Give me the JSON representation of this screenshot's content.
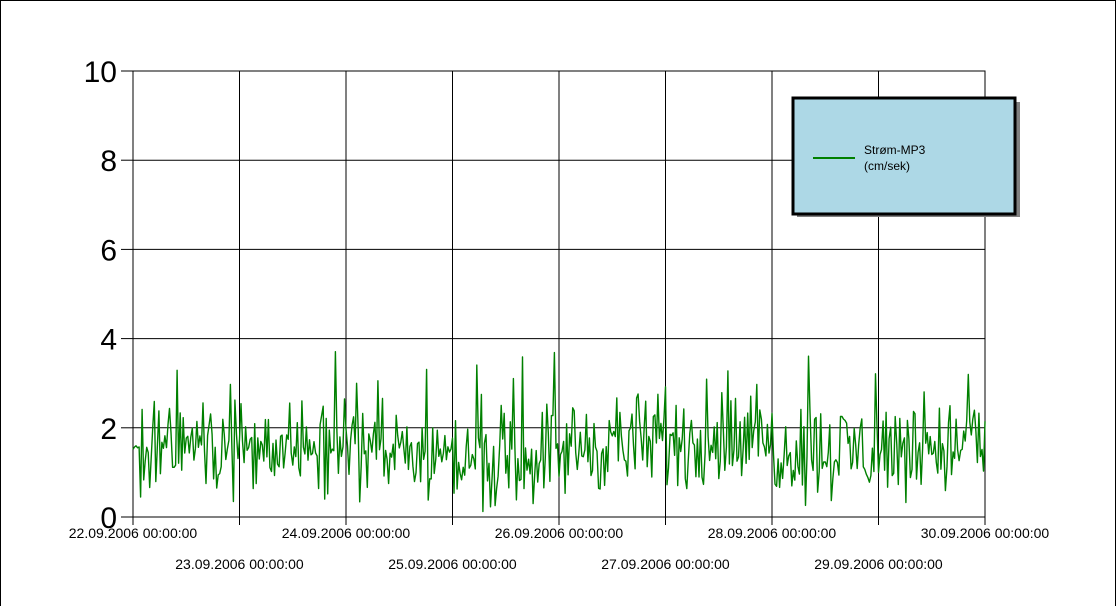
{
  "chart_data": {
    "type": "line",
    "title": "",
    "xlabel": "",
    "ylabel": "",
    "ylim": [
      0,
      10
    ],
    "yticks": [
      "0",
      "2",
      "4",
      "6",
      "8",
      "10"
    ],
    "xlim": [
      "22.09.2006 00:00:00",
      "30.09.2006 00:00:00"
    ],
    "xticks_upper": [
      "22.09.2006 00:00:00",
      "24.09.2006 00:00:00",
      "26.09.2006 00:00:00",
      "28.09.2006 00:00:00",
      "30.09.2006 00:00:00"
    ],
    "xticks_lower": [
      "23.09.2006 00:00:00",
      "25.09.2006 00:00:00",
      "27.09.2006 00:00:00",
      "29.09.2006 00:00:00"
    ],
    "grid": true,
    "legend_position": "top-right",
    "legend_bg": "#add8e6",
    "series": [
      {
        "name_line1": "Strøm-MP3",
        "name_line2": "(cm/sek)",
        "color": "#008000",
        "x": [
          "22.09.2006 00:00",
          "22.09.2006 12:00",
          "23.09.2006 00:00",
          "23.09.2006 12:00",
          "24.09.2006 00:00",
          "24.09.2006 12:00",
          "25.09.2006 00:00",
          "25.09.2006 12:00",
          "26.09.2006 00:00",
          "26.09.2006 12:00",
          "27.09.2006 00:00",
          "27.09.2006 12:00",
          "28.09.2006 00:00",
          "28.09.2006 12:00",
          "29.09.2006 00:00",
          "29.09.2006 12:00",
          "30.09.2006 00:00"
        ],
        "y": [
          1.5,
          1.6,
          1.5,
          1.6,
          1.6,
          1.5,
          1.3,
          1.3,
          1.5,
          1.7,
          1.6,
          1.8,
          1.6,
          1.5,
          1.5,
          1.6,
          1.6
        ],
        "min": 0.1,
        "max": 4.0
      }
    ]
  }
}
